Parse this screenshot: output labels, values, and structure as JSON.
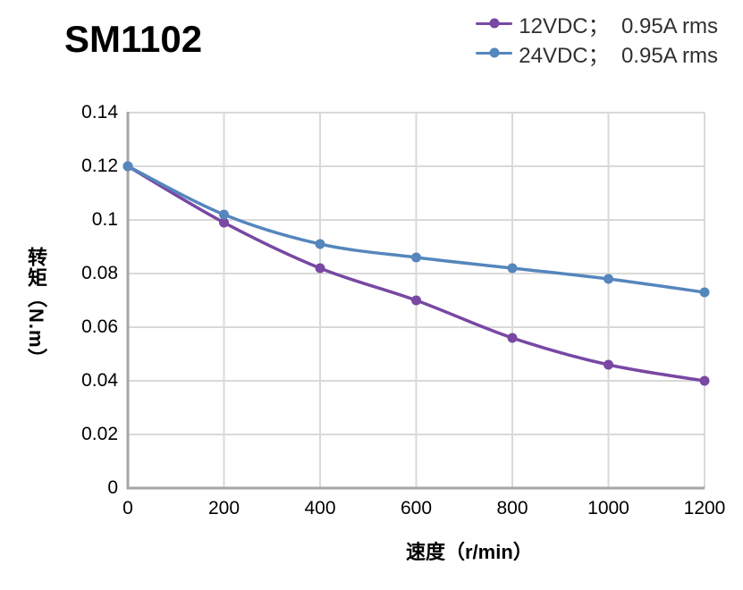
{
  "header": {
    "title": "SM1102"
  },
  "legend": {
    "items": [
      {
        "label": "12VDC；  0.95A rms",
        "color": "#7848A3"
      },
      {
        "label": "24VDC；  0.95A rms",
        "color": "#5586BC"
      }
    ]
  },
  "chart_data": {
    "type": "line",
    "title": "SM1102",
    "x": [
      0,
      200,
      400,
      600,
      800,
      1000,
      1200
    ],
    "series": [
      {
        "name": "12VDC；0.95A rms",
        "color": "#7848A3",
        "values": [
          0.12,
          0.099,
          0.082,
          0.07,
          0.056,
          0.046,
          0.04
        ]
      },
      {
        "name": "24VDC；0.95A rms",
        "color": "#5586BC",
        "values": [
          0.12,
          0.102,
          0.091,
          0.086,
          0.082,
          0.078,
          0.073
        ]
      }
    ],
    "xlabel": "速度（r/min）",
    "ylabel": "转矩（N.m）",
    "xlim": [
      0,
      1200
    ],
    "ylim": [
      0,
      0.14
    ],
    "x_ticks": [
      0,
      200,
      400,
      600,
      800,
      1000,
      1200
    ],
    "x_tick_labels": [
      "0",
      "200",
      "400",
      "600",
      "800",
      "1000",
      "1200"
    ],
    "y_ticks": [
      0,
      0.02,
      0.04,
      0.06,
      0.08,
      0.1,
      0.12,
      0.14
    ],
    "y_tick_labels": [
      "0",
      "0.02",
      "0.04",
      "0.06",
      "0.08",
      "0.1",
      "0.12",
      "0.14"
    ],
    "grid": true,
    "legend_position": "top-right",
    "marker": "circle",
    "colors": {
      "gridline": "#D9D9D9",
      "axis": "#A6A6A6",
      "tick_text": "#000000",
      "legend_text": "#303030"
    }
  }
}
